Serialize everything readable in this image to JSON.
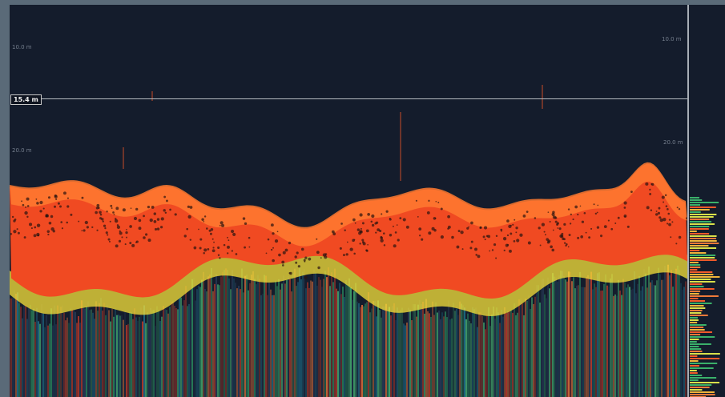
{
  "display": {
    "depth_labels": [
      "10.0 m",
      "10.0 m",
      "20.0 m",
      "20.0 m"
    ],
    "cursor_depth": "15.4 m"
  },
  "colors": {
    "background": "#141c2c",
    "seabed_red": "#f04a22",
    "seabed_orange": "#ff7a30",
    "edge_yellow": "#f7e23a",
    "subbottom_green": "#2e9a66",
    "cursor_line": "#b7bcc2"
  }
}
